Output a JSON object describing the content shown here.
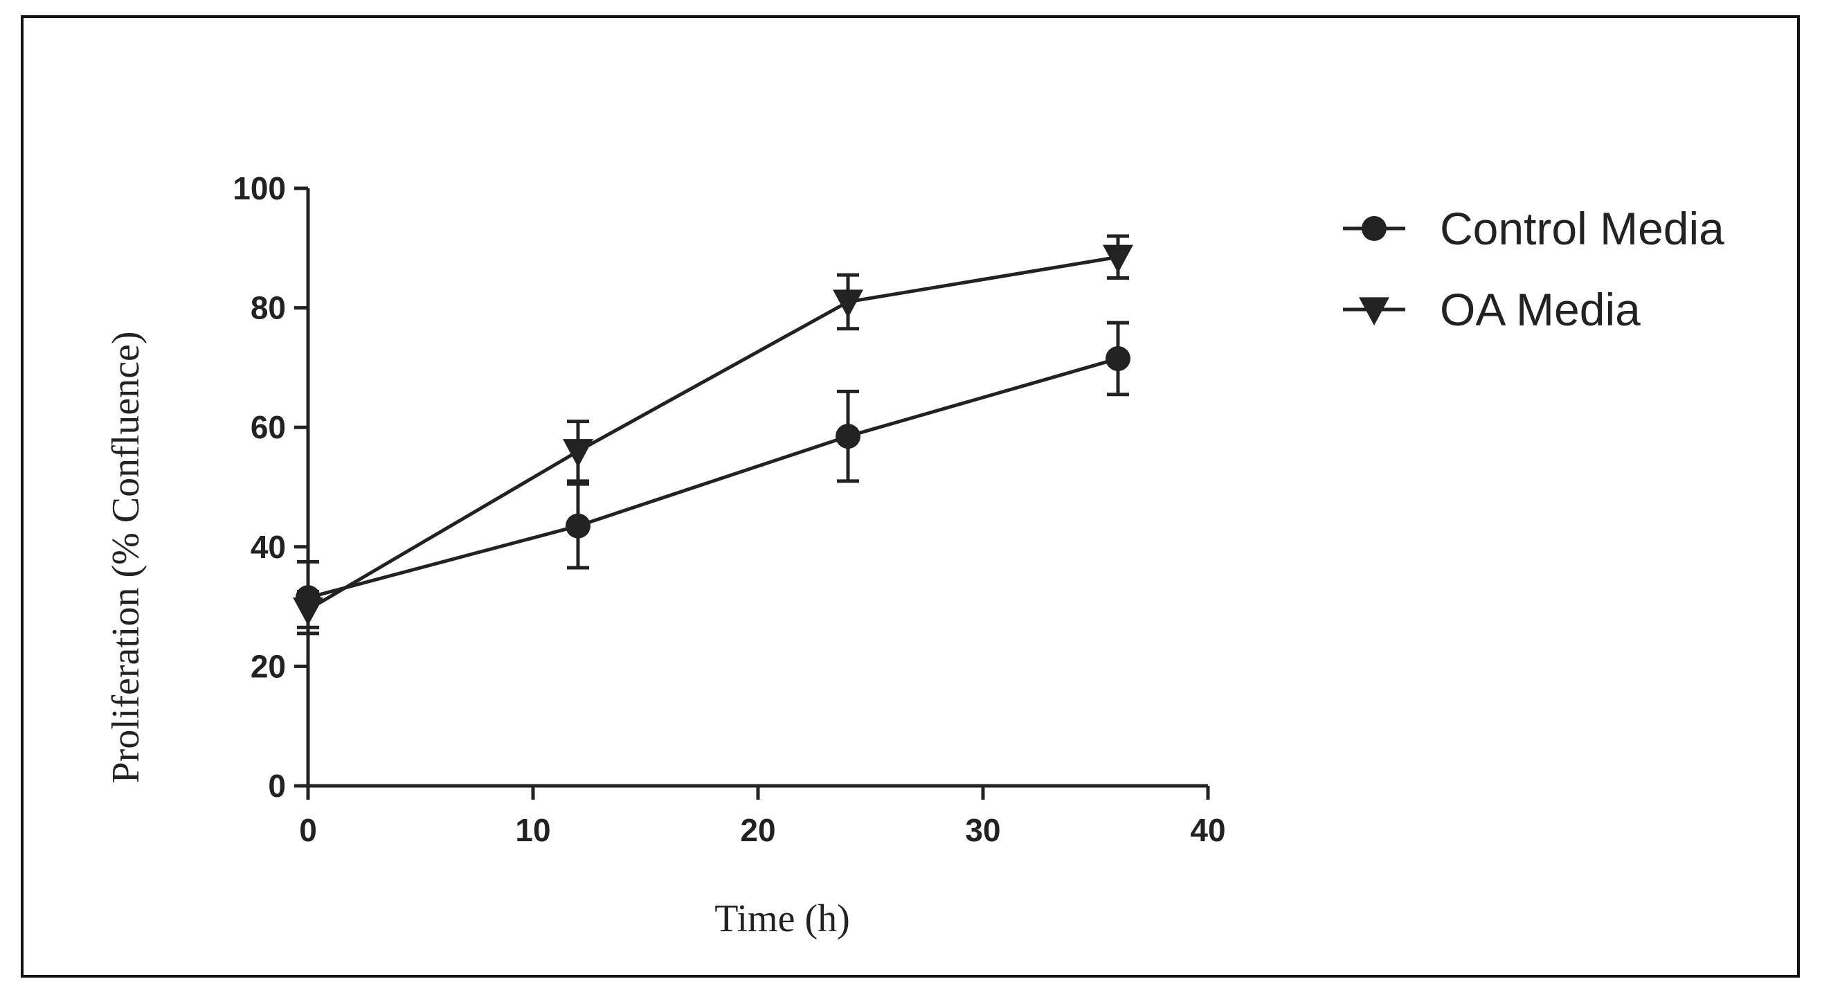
{
  "chart_data": {
    "type": "line",
    "title": "",
    "xlabel": "Time (h)",
    "ylabel": "Proliferation (% Confluence)",
    "xlim": [
      0,
      40
    ],
    "ylim": [
      0,
      100
    ],
    "xticks": [
      "0",
      "10",
      "20",
      "30",
      "40"
    ],
    "yticks": [
      "0",
      "20",
      "40",
      "60",
      "80",
      "100"
    ],
    "grid": false,
    "legend_position": "top-right",
    "x": [
      0,
      12,
      24,
      36
    ],
    "series": [
      {
        "name": "Control  Media",
        "marker": "circle",
        "values": [
          31.5,
          43.5,
          58.5,
          71.5
        ],
        "errors": [
          6,
          7,
          7.5,
          6
        ]
      },
      {
        "name": "OA Media",
        "marker": "triangle-down",
        "values": [
          29.5,
          56,
          81,
          88.5
        ],
        "errors": [
          3,
          5,
          4.5,
          3.5
        ]
      }
    ],
    "colors": {
      "line": "#222222",
      "axis": "#222222"
    }
  }
}
